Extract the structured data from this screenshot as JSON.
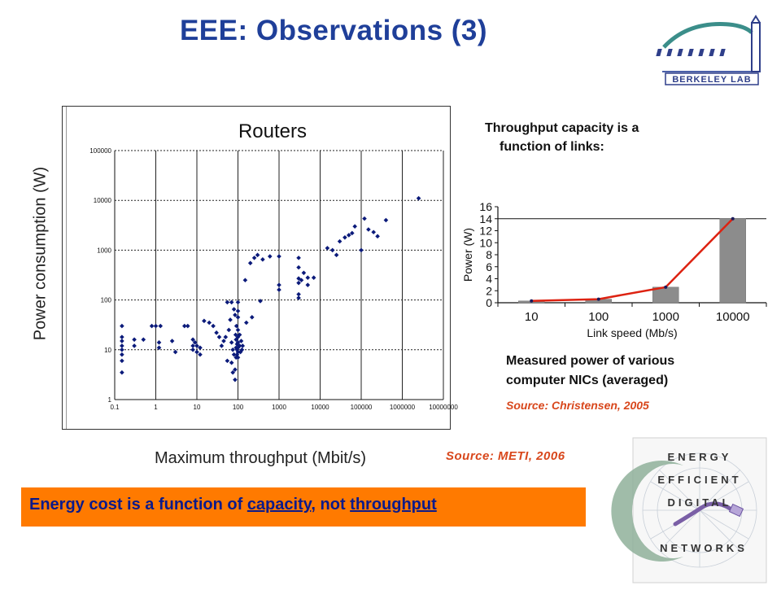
{
  "slide": {
    "title": "EEE: Observations (3)",
    "colors": {
      "title": "#1f3f99",
      "accent_orange": "#ff7a00",
      "source_red": "#d8471c",
      "banner_text": "#0b1a8a"
    }
  },
  "logo": {
    "text": "BERKELEY LAB",
    "icon": "berkeley-lab-logo-icon"
  },
  "router_chart": {
    "y_axis_title": "Power consumption (W)",
    "x_axis_title": "Maximum throughput (Mbit/s)",
    "source": "Source: METI, 2006"
  },
  "nic_section": {
    "heading_line1": "Throughput capacity is a",
    "heading_line2": "function of links:",
    "caption_line1": "Measured power of various",
    "caption_line2": "computer NICs (averaged)",
    "source": "Source: Christensen, 2005"
  },
  "banner": {
    "prefix": "Energy cost is a function of ",
    "word1": "capacity",
    "middle": ", not ",
    "word2": "throughput"
  },
  "eedn_logo": {
    "line1": "ENERGY",
    "line2": "EFFICIENT",
    "line3": "DIGITAL",
    "line4": "NETWORKS",
    "icon": "ethernet-cable-icon"
  },
  "chart_data": [
    {
      "type": "scatter",
      "title": "Routers",
      "xlabel": "",
      "ylabel": "",
      "x_scale": "log",
      "y_scale": "log",
      "xlim": [
        0.1,
        10000000
      ],
      "ylim": [
        1,
        100000
      ],
      "x_ticks": [
        "0.1",
        "1",
        "10",
        "100",
        "1000",
        "10000",
        "100000",
        "1000000",
        "10000000"
      ],
      "y_ticks": [
        "1",
        "10",
        "100",
        "1000",
        "10000",
        "100000"
      ],
      "grid": true,
      "marker_color": "#0b1a7a",
      "points": [
        [
          0.15,
          30
        ],
        [
          0.15,
          18
        ],
        [
          0.15,
          12
        ],
        [
          0.15,
          8
        ],
        [
          0.15,
          6
        ],
        [
          0.15,
          3.5
        ],
        [
          0.15,
          15
        ],
        [
          0.15,
          10
        ],
        [
          0.3,
          16
        ],
        [
          0.3,
          12
        ],
        [
          0.5,
          16
        ],
        [
          0.8,
          30
        ],
        [
          1,
          30
        ],
        [
          1.3,
          30
        ],
        [
          1.2,
          14
        ],
        [
          1.2,
          11
        ],
        [
          2.5,
          15
        ],
        [
          3,
          9
        ],
        [
          5,
          30
        ],
        [
          6,
          30
        ],
        [
          8,
          16
        ],
        [
          8,
          12
        ],
        [
          8,
          10
        ],
        [
          9,
          14
        ],
        [
          10,
          12
        ],
        [
          10,
          9
        ],
        [
          12,
          8
        ],
        [
          12,
          11
        ],
        [
          15,
          38
        ],
        [
          20,
          35
        ],
        [
          25,
          30
        ],
        [
          30,
          22
        ],
        [
          35,
          18
        ],
        [
          40,
          12
        ],
        [
          45,
          15
        ],
        [
          50,
          18
        ],
        [
          55,
          90
        ],
        [
          55,
          6
        ],
        [
          60,
          25
        ],
        [
          65,
          40
        ],
        [
          70,
          90
        ],
        [
          70,
          14
        ],
        [
          70,
          5.5
        ],
        [
          75,
          10
        ],
        [
          75,
          3.5
        ],
        [
          80,
          8
        ],
        [
          80,
          65
        ],
        [
          85,
          2.5
        ],
        [
          85,
          50
        ],
        [
          85,
          4
        ],
        [
          88,
          20
        ],
        [
          90,
          16
        ],
        [
          90,
          7
        ],
        [
          90,
          11
        ],
        [
          92,
          30
        ],
        [
          95,
          10
        ],
        [
          95,
          13
        ],
        [
          95,
          8
        ],
        [
          100,
          90
        ],
        [
          100,
          60
        ],
        [
          100,
          45
        ],
        [
          100,
          25
        ],
        [
          100,
          18
        ],
        [
          100,
          14
        ],
        [
          100,
          11
        ],
        [
          100,
          9
        ],
        [
          100,
          7
        ],
        [
          110,
          12
        ],
        [
          110,
          20
        ],
        [
          115,
          9
        ],
        [
          120,
          15
        ],
        [
          125,
          10
        ],
        [
          130,
          12
        ],
        [
          150,
          250
        ],
        [
          160,
          35
        ],
        [
          200,
          550
        ],
        [
          220,
          45
        ],
        [
          250,
          700
        ],
        [
          300,
          800
        ],
        [
          350,
          95
        ],
        [
          400,
          650
        ],
        [
          600,
          750
        ],
        [
          1000,
          750
        ],
        [
          1000,
          200
        ],
        [
          1000,
          160
        ],
        [
          3000,
          700
        ],
        [
          3000,
          450
        ],
        [
          3000,
          270
        ],
        [
          3000,
          220
        ],
        [
          3000,
          130
        ],
        [
          3000,
          110
        ],
        [
          3500,
          250
        ],
        [
          4000,
          350
        ],
        [
          5000,
          280
        ],
        [
          5000,
          200
        ],
        [
          7000,
          280
        ],
        [
          15000,
          1100
        ],
        [
          20000,
          1000
        ],
        [
          25000,
          800
        ],
        [
          30000,
          1500
        ],
        [
          40000,
          1800
        ],
        [
          50000,
          2000
        ],
        [
          60000,
          2200
        ],
        [
          70000,
          3000
        ],
        [
          100000,
          1000
        ],
        [
          120000,
          4300
        ],
        [
          150000,
          2600
        ],
        [
          200000,
          2300
        ],
        [
          250000,
          1900
        ],
        [
          400000,
          4000
        ],
        [
          2500000,
          11000
        ]
      ]
    },
    {
      "type": "bar",
      "title": "",
      "xlabel": "Link speed (Mb/s)",
      "ylabel": "Power (W)",
      "categories": [
        "10",
        "100",
        "1000",
        "10000"
      ],
      "values": [
        0.3,
        0.6,
        2.6,
        14
      ],
      "line_overlay": [
        0.3,
        0.6,
        2.6,
        14
      ],
      "ylim": [
        0,
        16
      ],
      "y_ticks": [
        "0",
        "2",
        "4",
        "6",
        "8",
        "10",
        "12",
        "14",
        "16"
      ],
      "bar_color": "#8c8c8c",
      "line_color": "#dd2211"
    }
  ]
}
